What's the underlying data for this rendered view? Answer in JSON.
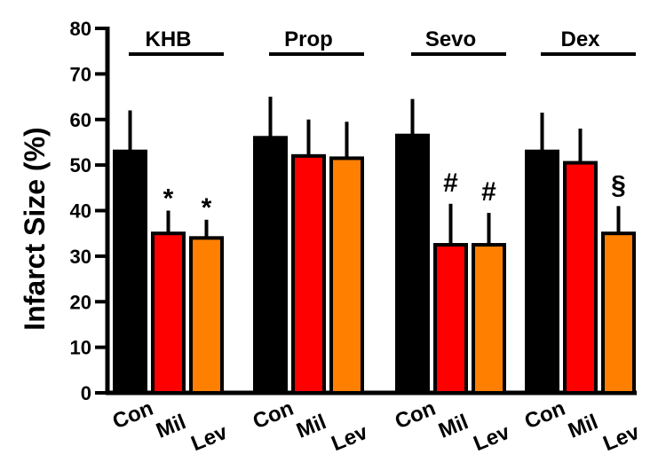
{
  "chart_data": {
    "type": "bar",
    "ylabel": "Infarct Size  (%)",
    "ylim": [
      0,
      80
    ],
    "yticks": [
      0,
      10,
      20,
      30,
      40,
      50,
      60,
      70,
      80
    ],
    "groups": [
      {
        "label": "KHB",
        "bars": [
          {
            "category": "Con",
            "value": 53,
            "error": 9,
            "color": "#000000",
            "mark": ""
          },
          {
            "category": "Mil",
            "value": 35,
            "error": 5,
            "color": "#ff0000",
            "mark": "*"
          },
          {
            "category": "Lev",
            "value": 34,
            "error": 4,
            "color": "#ff8000",
            "mark": "*"
          }
        ]
      },
      {
        "label": "Prop",
        "bars": [
          {
            "category": "Con",
            "value": 56,
            "error": 9,
            "color": "#000000",
            "mark": ""
          },
          {
            "category": "Mil",
            "value": 52,
            "error": 8,
            "color": "#ff0000",
            "mark": ""
          },
          {
            "category": "Lev",
            "value": 51.5,
            "error": 8,
            "color": "#ff8000",
            "mark": ""
          }
        ]
      },
      {
        "label": "Sevo",
        "bars": [
          {
            "category": "Con",
            "value": 56.5,
            "error": 8,
            "color": "#000000",
            "mark": ""
          },
          {
            "category": "Mil",
            "value": 32.5,
            "error": 9,
            "color": "#ff0000",
            "mark": "#"
          },
          {
            "category": "Lev",
            "value": 32.5,
            "error": 7,
            "color": "#ff8000",
            "mark": "#"
          }
        ]
      },
      {
        "label": "Dex",
        "bars": [
          {
            "category": "Con",
            "value": 53,
            "error": 8.5,
            "color": "#000000",
            "mark": ""
          },
          {
            "category": "Mil",
            "value": 50.5,
            "error": 7.5,
            "color": "#ff0000",
            "mark": ""
          },
          {
            "category": "Lev",
            "value": 35,
            "error": 6,
            "color": "#ff8000",
            "mark": "§"
          }
        ]
      }
    ]
  }
}
